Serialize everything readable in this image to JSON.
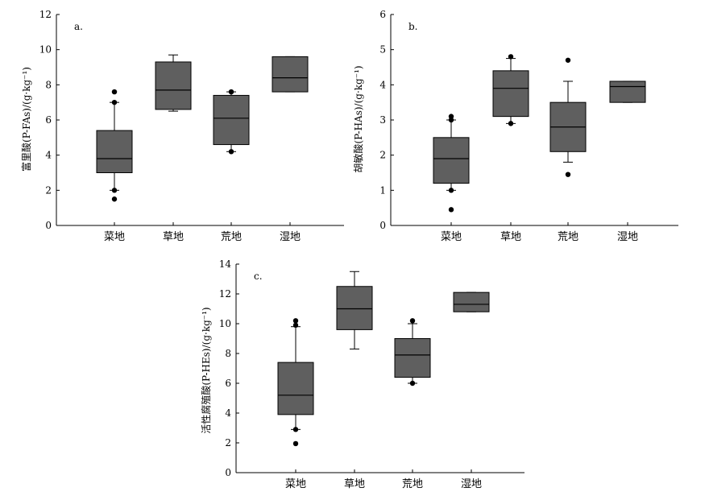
{
  "chart_data": [
    {
      "type": "box",
      "panel_label": "a.",
      "ylabel": "富里酸(P-FAs)/(g·kg⁻¹)",
      "ylim": [
        0,
        12
      ],
      "yticks": [
        0,
        2,
        4,
        6,
        8,
        10,
        12
      ],
      "categories": [
        "菜地",
        "草地",
        "荒地",
        "湿地"
      ],
      "boxes": [
        {
          "q1": 3.0,
          "median": 3.8,
          "q3": 5.4,
          "whisker_low": 2.0,
          "whisker_high": 7.0,
          "outliers": [
            1.5,
            2.0,
            7.0,
            7.6
          ]
        },
        {
          "q1": 6.6,
          "median": 7.7,
          "q3": 9.3,
          "whisker_low": 6.5,
          "whisker_high": 9.7,
          "outliers": []
        },
        {
          "q1": 4.6,
          "median": 6.1,
          "q3": 7.4,
          "whisker_low": 4.2,
          "whisker_high": 7.6,
          "outliers": [
            4.2,
            7.6
          ]
        },
        {
          "q1": 7.6,
          "median": 8.4,
          "q3": 9.6,
          "whisker_low": 7.6,
          "whisker_high": 9.6,
          "outliers": []
        }
      ]
    },
    {
      "type": "box",
      "panel_label": "b.",
      "ylabel": "胡敏酸(P-HAs)/(g·kg⁻¹)",
      "ylim": [
        0,
        6
      ],
      "yticks": [
        0,
        1,
        2,
        3,
        4,
        5,
        6
      ],
      "categories": [
        "菜地",
        "草地",
        "荒地",
        "湿地"
      ],
      "boxes": [
        {
          "q1": 1.2,
          "median": 1.9,
          "q3": 2.5,
          "whisker_low": 1.0,
          "whisker_high": 3.0,
          "outliers": [
            0.45,
            1.0,
            3.0,
            3.1
          ]
        },
        {
          "q1": 3.1,
          "median": 3.9,
          "q3": 4.4,
          "whisker_low": 2.9,
          "whisker_high": 4.75,
          "outliers": [
            2.9,
            4.8
          ]
        },
        {
          "q1": 2.1,
          "median": 2.8,
          "q3": 3.5,
          "whisker_low": 1.8,
          "whisker_high": 4.1,
          "outliers": [
            1.45,
            4.7
          ]
        },
        {
          "q1": 3.5,
          "median": 3.95,
          "q3": 4.1,
          "whisker_low": 3.5,
          "whisker_high": 4.1,
          "outliers": []
        }
      ]
    },
    {
      "type": "box",
      "panel_label": "c.",
      "ylabel": "活性腐殖酸(P-HEs)/(g·kg⁻¹)",
      "ylim": [
        0,
        14
      ],
      "yticks": [
        0,
        2,
        4,
        6,
        8,
        10,
        12,
        14
      ],
      "categories": [
        "菜地",
        "草地",
        "荒地",
        "湿地"
      ],
      "boxes": [
        {
          "q1": 3.9,
          "median": 5.2,
          "q3": 7.4,
          "whisker_low": 2.9,
          "whisker_high": 9.8,
          "outliers": [
            1.95,
            2.9,
            9.9,
            10.2
          ]
        },
        {
          "q1": 9.6,
          "median": 11.0,
          "q3": 12.5,
          "whisker_low": 8.3,
          "whisker_high": 13.5,
          "outliers": []
        },
        {
          "q1": 6.4,
          "median": 7.9,
          "q3": 9.0,
          "whisker_low": 6.0,
          "whisker_high": 10.0,
          "outliers": [
            6.0,
            10.2
          ]
        },
        {
          "q1": 10.8,
          "median": 11.3,
          "q3": 12.1,
          "whisker_low": 10.8,
          "whisker_high": 12.1,
          "outliers": []
        }
      ]
    }
  ]
}
